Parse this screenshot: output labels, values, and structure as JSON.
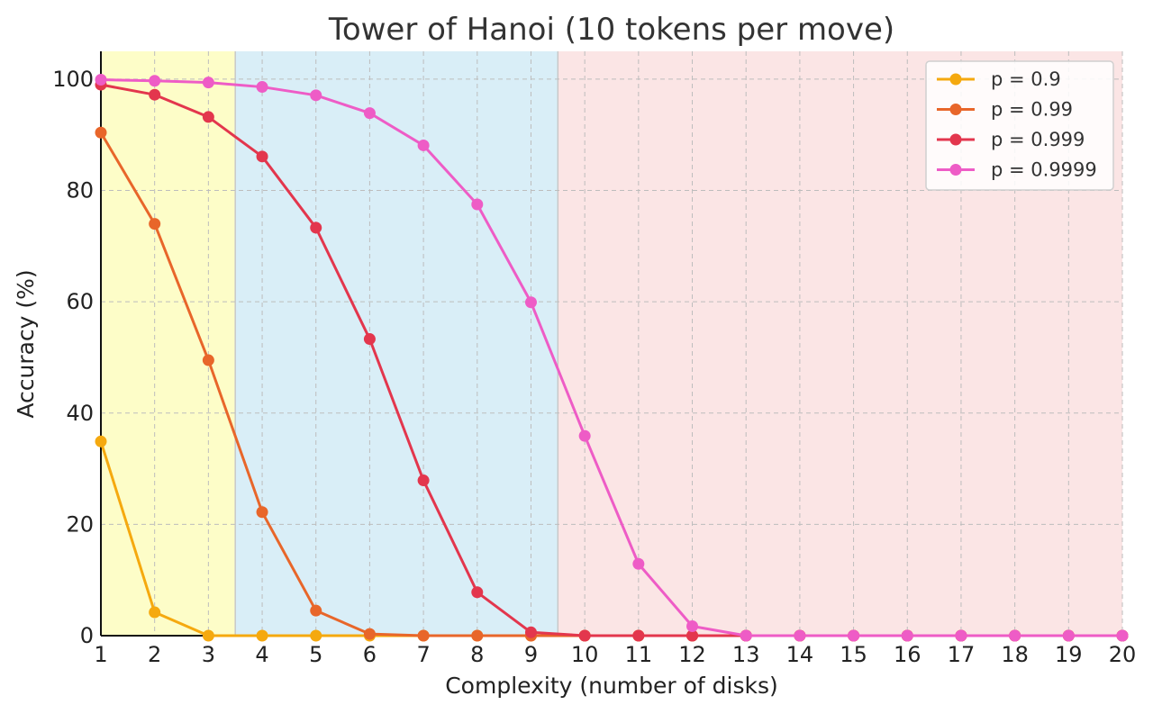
{
  "chart_data": {
    "type": "line",
    "title": "Tower of Hanoi (10 tokens per move)",
    "xlabel": "Complexity (number of disks)",
    "ylabel": "Accuracy (%)",
    "x": [
      1,
      2,
      3,
      4,
      5,
      6,
      7,
      8,
      9,
      10,
      11,
      12,
      13,
      14,
      15,
      16,
      17,
      18,
      19,
      20
    ],
    "xlim": [
      1,
      20
    ],
    "ylim": [
      0,
      105
    ],
    "yticks": [
      0,
      20,
      40,
      60,
      80,
      100
    ],
    "grid": true,
    "legend_position": "top-right",
    "regions": [
      {
        "x_start": 1,
        "x_end": 3.5,
        "color": "#fdfdc8"
      },
      {
        "x_start": 3.5,
        "x_end": 9.5,
        "color": "#d9eef7"
      },
      {
        "x_start": 9.5,
        "x_end": 20,
        "color": "#fbe5e5"
      }
    ],
    "series": [
      {
        "name": "p = 0.9",
        "color": "#f5a90f",
        "values": [
          34.9,
          4.2,
          0.0,
          0.0,
          0.0,
          0.0,
          0.0,
          0.0,
          0.0,
          0.0,
          0.0,
          0.0,
          0.0,
          0.0,
          0.0,
          0.0,
          0.0,
          0.0,
          0.0,
          0.0
        ]
      },
      {
        "name": "p = 0.99",
        "color": "#e8662a",
        "values": [
          90.4,
          74.0,
          49.5,
          22.2,
          4.5,
          0.3,
          0.0,
          0.0,
          0.0,
          0.0,
          0.0,
          0.0,
          0.0,
          0.0,
          0.0,
          0.0,
          0.0,
          0.0,
          0.0,
          0.0
        ]
      },
      {
        "name": "p = 0.999",
        "color": "#e3364d",
        "values": [
          99.0,
          97.2,
          93.2,
          86.1,
          73.3,
          53.3,
          27.9,
          7.8,
          0.6,
          0.0,
          0.0,
          0.0,
          0.0,
          0.0,
          0.0,
          0.0,
          0.0,
          0.0,
          0.0,
          0.0
        ]
      },
      {
        "name": "p = 0.9999",
        "color": "#ee5cc6",
        "values": [
          99.9,
          99.7,
          99.4,
          98.6,
          97.1,
          93.9,
          88.1,
          77.5,
          59.9,
          35.9,
          12.9,
          1.7,
          0.0,
          0.0,
          0.0,
          0.0,
          0.0,
          0.0,
          0.0,
          0.0
        ]
      }
    ]
  }
}
